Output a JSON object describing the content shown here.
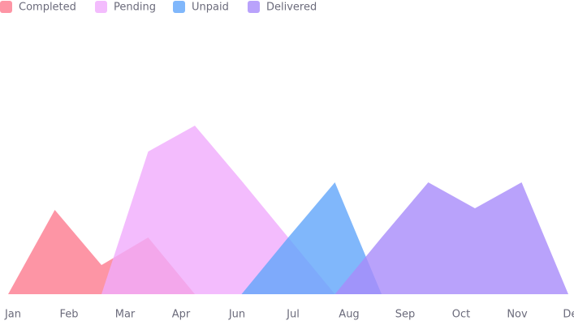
{
  "chart_data": {
    "type": "area",
    "x": [
      0,
      1,
      2,
      3,
      4,
      5,
      6,
      7,
      8,
      9,
      10,
      11,
      12
    ],
    "xlim": [
      0,
      12
    ],
    "xticks": [
      {
        "value": 0,
        "label": "Jan"
      },
      {
        "value": 1.2,
        "label": "Feb"
      },
      {
        "value": 2.4,
        "label": "Mar"
      },
      {
        "value": 3.6,
        "label": "Apr"
      },
      {
        "value": 4.8,
        "label": "Jun"
      },
      {
        "value": 6,
        "label": "Jul"
      },
      {
        "value": 7.2,
        "label": "Aug"
      },
      {
        "value": 8.4,
        "label": "Sep"
      },
      {
        "value": 9.6,
        "label": "Oct"
      },
      {
        "value": 10.8,
        "label": "Nov"
      },
      {
        "value": 12,
        "label": "Dec"
      }
    ],
    "ylim": [
      0,
      180
    ],
    "series": [
      {
        "name": "Completed",
        "color": "#fc7a8e",
        "values": [
          0,
          52,
          18,
          35,
          0,
          null,
          null,
          null,
          null,
          null,
          null,
          null,
          null
        ]
      },
      {
        "name": "Pending",
        "color": "#f0abfc",
        "values": [
          null,
          null,
          0,
          88,
          104,
          70,
          35,
          0,
          null,
          null,
          null,
          null,
          null
        ]
      },
      {
        "name": "Unpaid",
        "color": "#60a5fa",
        "values": [
          null,
          null,
          null,
          null,
          null,
          0,
          35,
          69,
          0,
          null,
          null,
          null,
          null
        ]
      },
      {
        "name": "Delivered",
        "color": "#a78bfa",
        "values": [
          null,
          null,
          null,
          null,
          null,
          null,
          null,
          0,
          35,
          69,
          53,
          69,
          0
        ]
      }
    ]
  }
}
